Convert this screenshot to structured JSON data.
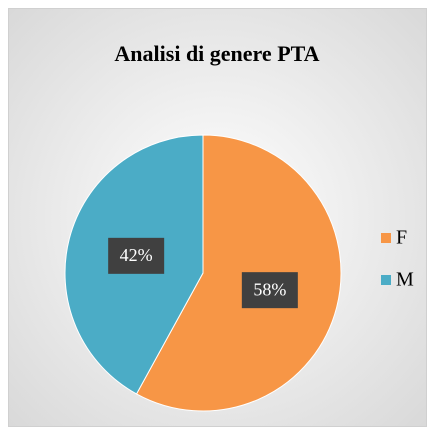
{
  "chart_data": {
    "type": "pie",
    "title": "Analisi di genere PTA",
    "categories": [
      "F",
      "M"
    ],
    "values": [
      58,
      42
    ],
    "value_labels": [
      "58%",
      "42%"
    ],
    "colors": [
      "#f79646",
      "#4bacc6"
    ],
    "legend": "right"
  }
}
